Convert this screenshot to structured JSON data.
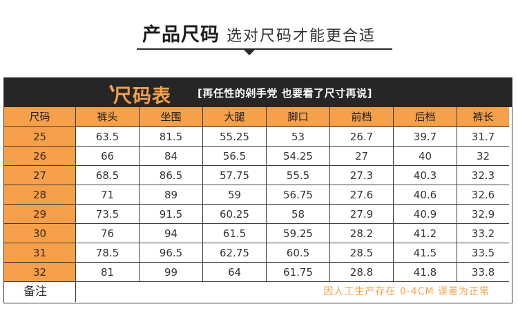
{
  "header": {
    "title": "产品尺码",
    "subtitle": "选对尺码才能更合适"
  },
  "banner": {
    "title": "尺码表",
    "note": "[再任性的剁手党 也要看了尺寸再说]"
  },
  "table": {
    "headers": [
      "尺码",
      "裤头",
      "坐围",
      "大腿",
      "脚口",
      "前档",
      "后档",
      "裤长"
    ],
    "rows": [
      [
        "25",
        "63.5",
        "81.5",
        "55.25",
        "53",
        "26.7",
        "39.7",
        "31.7"
      ],
      [
        "26",
        "66",
        "84",
        "56.5",
        "54.25",
        "27",
        "40",
        "32"
      ],
      [
        "27",
        "68.5",
        "86.5",
        "57.75",
        "55.5",
        "27.3",
        "40.3",
        "32.3"
      ],
      [
        "28",
        "71",
        "89",
        "59",
        "56.75",
        "27.6",
        "40.6",
        "32.6"
      ],
      [
        "29",
        "73.5",
        "91.5",
        "60.25",
        "58",
        "27.9",
        "40.9",
        "32.9"
      ],
      [
        "30",
        "76",
        "94",
        "61.5",
        "59.25",
        "28.2",
        "41.2",
        "33.2"
      ],
      [
        "31",
        "78.5",
        "96.5",
        "62.75",
        "60.5",
        "28.5",
        "41.5",
        "33.5"
      ],
      [
        "32",
        "81",
        "99",
        "64",
        "61.75",
        "28.8",
        "41.8",
        "33.8"
      ]
    ],
    "note_label": "备注",
    "note_text": "因人工生产存在 0-4CM 误差为正常"
  },
  "colors": {
    "accent": "#f6a04a",
    "banner_bg": "#262626",
    "border": "#3a3a3a"
  }
}
